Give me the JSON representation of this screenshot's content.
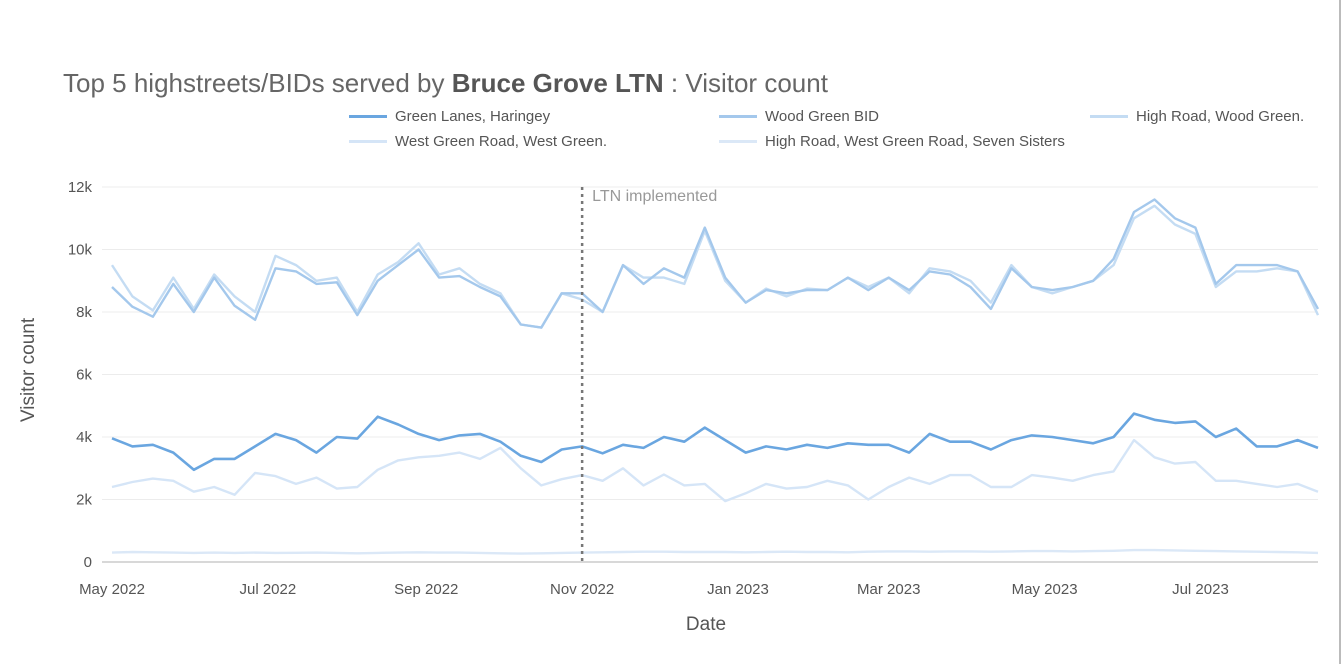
{
  "title": {
    "prefix": "Top 5 highstreets/BIDs served by ",
    "bold": "Bruce Grove LTN",
    "suffix": " : Visitor count"
  },
  "chart_data": {
    "type": "line",
    "xlabel": "Date",
    "ylabel": "Visitor count",
    "ylim": [
      0,
      12000
    ],
    "xlim": [
      "2022-05-01",
      "2023-08-16"
    ],
    "grid": true,
    "legend_placement": "top",
    "yticks": [
      {
        "v": 0,
        "label": "0"
      },
      {
        "v": 2000,
        "label": "2k"
      },
      {
        "v": 4000,
        "label": "4k"
      },
      {
        "v": 6000,
        "label": "6k"
      },
      {
        "v": 8000,
        "label": "8k"
      },
      {
        "v": 10000,
        "label": "10k"
      },
      {
        "v": 12000,
        "label": "12k"
      }
    ],
    "xticks": [
      {
        "d": "2022-05-01",
        "label": "May 2022"
      },
      {
        "d": "2022-07-01",
        "label": "Jul 2022"
      },
      {
        "d": "2022-09-01",
        "label": "Sep 2022"
      },
      {
        "d": "2022-11-01",
        "label": "Nov 2022"
      },
      {
        "d": "2023-01-01",
        "label": "Jan 2023"
      },
      {
        "d": "2023-03-01",
        "label": "Mar 2023"
      },
      {
        "d": "2023-05-01",
        "label": "May 2023"
      },
      {
        "d": "2023-07-01",
        "label": "Jul 2023"
      }
    ],
    "annotation": {
      "date": "2022-11-01",
      "label": "LTN implemented"
    },
    "x": [
      "2022-05-01",
      "2022-05-09",
      "2022-05-17",
      "2022-05-25",
      "2022-06-02",
      "2022-06-10",
      "2022-06-18",
      "2022-06-26",
      "2022-07-04",
      "2022-07-12",
      "2022-07-20",
      "2022-07-28",
      "2022-08-05",
      "2022-08-13",
      "2022-08-21",
      "2022-08-29",
      "2022-09-06",
      "2022-09-14",
      "2022-09-22",
      "2022-09-30",
      "2022-10-08",
      "2022-10-16",
      "2022-10-24",
      "2022-11-01",
      "2022-11-09",
      "2022-11-17",
      "2022-11-25",
      "2022-12-03",
      "2022-12-11",
      "2022-12-19",
      "2022-12-27",
      "2023-01-04",
      "2023-01-12",
      "2023-01-20",
      "2023-01-28",
      "2023-02-05",
      "2023-02-13",
      "2023-02-21",
      "2023-03-01",
      "2023-03-09",
      "2023-03-17",
      "2023-03-25",
      "2023-04-02",
      "2023-04-10",
      "2023-04-18",
      "2023-04-26",
      "2023-05-04",
      "2023-05-12",
      "2023-05-20",
      "2023-05-28",
      "2023-06-05",
      "2023-06-13",
      "2023-06-21",
      "2023-06-29",
      "2023-07-07",
      "2023-07-15",
      "2023-07-23",
      "2023-07-31",
      "2023-08-08",
      "2023-08-16"
    ],
    "series": [
      {
        "name": "Green Lanes, Haringey",
        "color": "#6aa6e0",
        "width": 2.6,
        "values": [
          3960,
          3700,
          3750,
          3500,
          2950,
          3300,
          3300,
          3700,
          4100,
          3900,
          3500,
          4000,
          3950,
          4650,
          4400,
          4100,
          3900,
          4050,
          4100,
          3850,
          3400,
          3200,
          3600,
          3700,
          3480,
          3750,
          3650,
          4000,
          3850,
          4300,
          3900,
          3500,
          3700,
          3600,
          3750,
          3650,
          3800,
          3750,
          3750,
          3500,
          4100,
          3850,
          3850,
          3600,
          3900,
          4050,
          4000,
          3900,
          3800,
          4000,
          4750,
          4550,
          4450,
          4500,
          4000,
          4270,
          3700,
          3700,
          3900,
          3650
        ]
      },
      {
        "name": "Wood Green BID",
        "color": "#a4c8ec",
        "width": 2.4,
        "values": [
          8800,
          8170,
          7850,
          8900,
          8000,
          9100,
          8200,
          7750,
          9400,
          9300,
          8900,
          8950,
          7900,
          9000,
          9500,
          10000,
          9100,
          9150,
          8800,
          8500,
          7600,
          7500,
          8600,
          8600,
          8000,
          9500,
          8900,
          9400,
          9100,
          10700,
          9100,
          8300,
          8700,
          8600,
          8700,
          8700,
          9100,
          8700,
          9100,
          8700,
          9300,
          9200,
          8800,
          8100,
          9400,
          8800,
          8700,
          8800,
          9000,
          9700,
          11200,
          11600,
          11000,
          10700,
          8900,
          9500,
          9500,
          9500,
          9300,
          8100
        ]
      },
      {
        "name": "High Road, Wood Green.",
        "color": "#c4dcf3",
        "width": 2.4,
        "values": [
          9500,
          8500,
          8050,
          9100,
          8100,
          9200,
          8500,
          8000,
          9800,
          9500,
          9000,
          9100,
          8000,
          9200,
          9600,
          10200,
          9200,
          9400,
          8900,
          8600,
          7600,
          7500,
          8600,
          8400,
          8000,
          9500,
          9100,
          9100,
          8900,
          10600,
          9000,
          8300,
          8750,
          8500,
          8750,
          8700,
          9100,
          8800,
          9100,
          8600,
          9400,
          9300,
          9000,
          8300,
          9500,
          8800,
          8600,
          8800,
          9000,
          9500,
          11000,
          11400,
          10800,
          10500,
          8800,
          9300,
          9300,
          9400,
          9300,
          7900
        ]
      },
      {
        "name": "West Green Road, West Green.",
        "color": "#d5e5f7",
        "width": 2.4,
        "values": [
          2400,
          2560,
          2670,
          2600,
          2250,
          2400,
          2150,
          2850,
          2750,
          2500,
          2700,
          2350,
          2400,
          2950,
          3250,
          3350,
          3400,
          3500,
          3300,
          3650,
          3000,
          2450,
          2650,
          2780,
          2600,
          3000,
          2450,
          2800,
          2450,
          2500,
          1950,
          2200,
          2500,
          2350,
          2400,
          2600,
          2450,
          2000,
          2400,
          2700,
          2500,
          2780,
          2780,
          2400,
          2400,
          2780,
          2700,
          2600,
          2780,
          2900,
          3900,
          3350,
          3150,
          3200,
          2600,
          2600,
          2500,
          2400,
          2500,
          2250
        ]
      },
      {
        "name": "High Road, West Green Road, Seven Sisters",
        "color": "#dbe8f7",
        "width": 2.4,
        "values": [
          300,
          320,
          310,
          300,
          290,
          300,
          290,
          300,
          290,
          295,
          300,
          290,
          280,
          290,
          300,
          310,
          300,
          300,
          290,
          280,
          270,
          280,
          290,
          300,
          310,
          320,
          330,
          330,
          320,
          320,
          320,
          310,
          320,
          330,
          320,
          320,
          310,
          330,
          340,
          340,
          330,
          340,
          340,
          330,
          340,
          350,
          350,
          340,
          350,
          360,
          380,
          380,
          370,
          360,
          350,
          340,
          330,
          320,
          310,
          290
        ]
      }
    ]
  }
}
